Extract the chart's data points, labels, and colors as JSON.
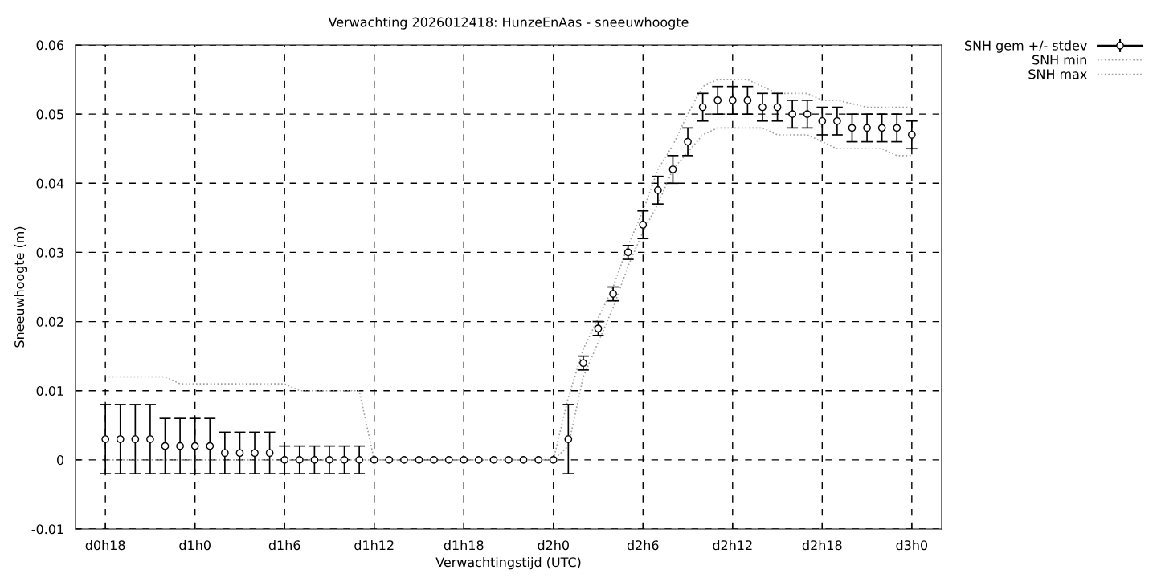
{
  "chart_data": {
    "type": "line",
    "title": "Verwachting 2026012418: HunzeEnAas - sneeuwhoogte",
    "xlabel": "Verwachtingstijd (UTC)",
    "ylabel": "Sneeuwhoogte (m)",
    "categories": [
      "d0h18",
      null,
      null,
      null,
      null,
      null,
      "d1h0",
      null,
      null,
      null,
      null,
      null,
      "d1h6",
      null,
      null,
      null,
      null,
      null,
      "d1h12",
      null,
      null,
      null,
      null,
      null,
      "d1h18",
      null,
      null,
      null,
      null,
      null,
      "d2h0",
      null,
      null,
      null,
      null,
      null,
      "d2h6",
      null,
      null,
      null,
      null,
      null,
      "d2h12",
      null,
      null,
      null,
      null,
      null,
      "d2h18",
      null,
      null,
      null,
      null,
      null,
      "d3h0"
    ],
    "series": [
      {
        "name": "SNH gem +/- stdev",
        "type": "scatter",
        "color": "#000000",
        "marker": "circle",
        "values": [
          0.003,
          0.003,
          0.003,
          0.003,
          0.002,
          0.002,
          0.002,
          0.002,
          0.001,
          0.001,
          0.001,
          0.001,
          0,
          0,
          0,
          0,
          0,
          0,
          0,
          0,
          0,
          0,
          0,
          0,
          0,
          0,
          0,
          0,
          0,
          0,
          0,
          0.003,
          0.014,
          0.019,
          0.024,
          0.03,
          0.034,
          0.039,
          0.042,
          0.046,
          0.051,
          0.052,
          0.052,
          0.052,
          0.051,
          0.051,
          0.05,
          0.05,
          0.049,
          0.049,
          0.048,
          0.048,
          0.048,
          0.048,
          0.047
        ],
        "errors": [
          0.005,
          0.005,
          0.005,
          0.005,
          0.004,
          0.004,
          0.004,
          0.004,
          0.003,
          0.003,
          0.003,
          0.003,
          0.002,
          0.002,
          0.002,
          0.002,
          0.002,
          0.002,
          null,
          null,
          null,
          null,
          null,
          null,
          null,
          null,
          null,
          null,
          null,
          null,
          null,
          0.005,
          0.001,
          0.001,
          0.001,
          0.001,
          0.002,
          0.002,
          0.002,
          0.002,
          0.002,
          0.002,
          0.002,
          0.002,
          0.002,
          0.002,
          0.002,
          0.002,
          0.002,
          0.002,
          0.002,
          0.002,
          0.002,
          0.002,
          0.002
        ]
      },
      {
        "name": "SNH min",
        "type": "line",
        "color": "#a0a0a0",
        "line_style": "dotted",
        "values": [
          0,
          0,
          0,
          0,
          0,
          0,
          0,
          0,
          0,
          0,
          0,
          0,
          0,
          0,
          0,
          0,
          0,
          0,
          0,
          0,
          0,
          0,
          0,
          0,
          0,
          0,
          0,
          0,
          0,
          0,
          0,
          0.002,
          0.012,
          0.017,
          0.022,
          0.028,
          0.033,
          0.037,
          0.042,
          0.0445,
          0.047,
          0.048,
          0.048,
          0.048,
          0.048,
          0.047,
          0.047,
          0.047,
          0.046,
          0.045,
          0.045,
          0.045,
          0.045,
          0.044,
          0.044
        ]
      },
      {
        "name": "SNH max",
        "type": "line",
        "color": "#a0a0a0",
        "line_style": "dotted",
        "values": [
          0.012,
          0.012,
          0.012,
          0.012,
          0.012,
          0.011,
          0.011,
          0.011,
          0.011,
          0.011,
          0.011,
          0.011,
          0.011,
          0.01,
          0.01,
          0.01,
          0.01,
          0.01,
          0,
          0,
          0,
          0,
          0,
          0,
          0,
          0,
          0,
          0,
          0,
          0,
          0,
          0.009,
          0.016,
          0.0205,
          0.025,
          0.031,
          0.036,
          0.042,
          0.0455,
          0.05,
          0.054,
          0.055,
          0.055,
          0.055,
          0.054,
          0.053,
          0.053,
          0.053,
          0.052,
          0.052,
          0.0515,
          0.051,
          0.051,
          0.051,
          0.051
        ]
      }
    ],
    "ylim": [
      -0.01,
      0.06
    ],
    "yticks": [
      {
        "value": -0.01,
        "label": "-0.01"
      },
      0,
      0.01,
      0.02,
      0.03,
      0.04,
      0.05,
      0.06
    ],
    "grid": true,
    "legend": "top right"
  }
}
